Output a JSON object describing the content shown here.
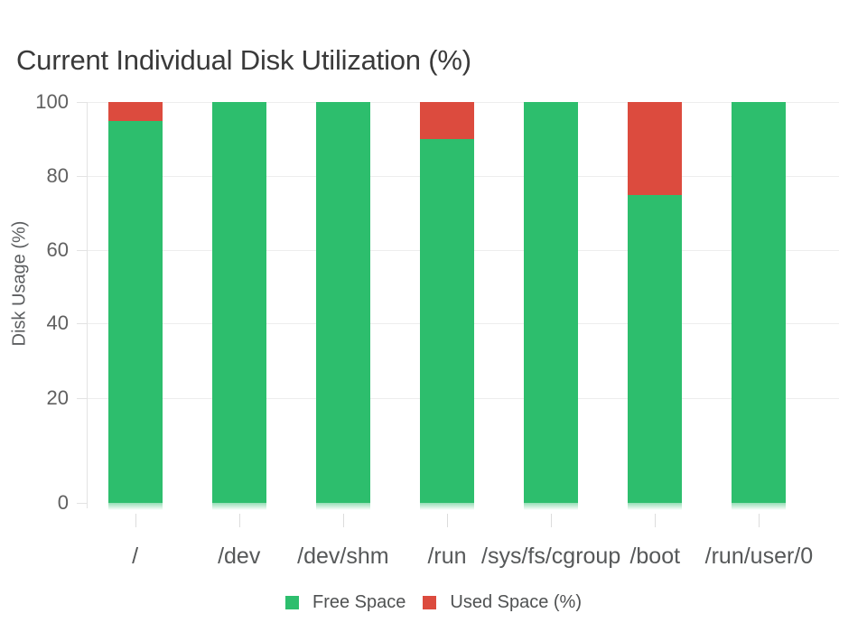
{
  "chart_data": {
    "type": "bar",
    "stacked": true,
    "orientation": "vertical",
    "title": "Current Individual Disk Utilization (%)",
    "xlabel": "",
    "ylabel": "Disk Usage (%)",
    "ylim": [
      0,
      100
    ],
    "y_ticks": [
      100,
      80,
      60,
      40,
      20,
      0
    ],
    "grid": true,
    "categories": [
      "/",
      "/dev",
      "/dev/shm",
      "/run",
      "/sys/fs/cgroup",
      "/boot",
      "/run/user/0"
    ],
    "series": [
      {
        "name": "Free Space",
        "color": "#2dbe6d",
        "values": [
          95,
          100,
          100,
          90,
          100,
          75,
          100
        ]
      },
      {
        "name": "Used Space (%)",
        "color": "#dc4b3e",
        "values": [
          5,
          0,
          0,
          10,
          0,
          25,
          0
        ]
      }
    ],
    "legend_position": "bottom",
    "colors": {
      "background": "#ffffff",
      "grid": "#ededed",
      "axis_line": "#e3e3e3",
      "title_text": "#3a3a3a",
      "tick_text": "#606060",
      "category_text": "#565859",
      "legend_text": "#4f5152"
    }
  }
}
